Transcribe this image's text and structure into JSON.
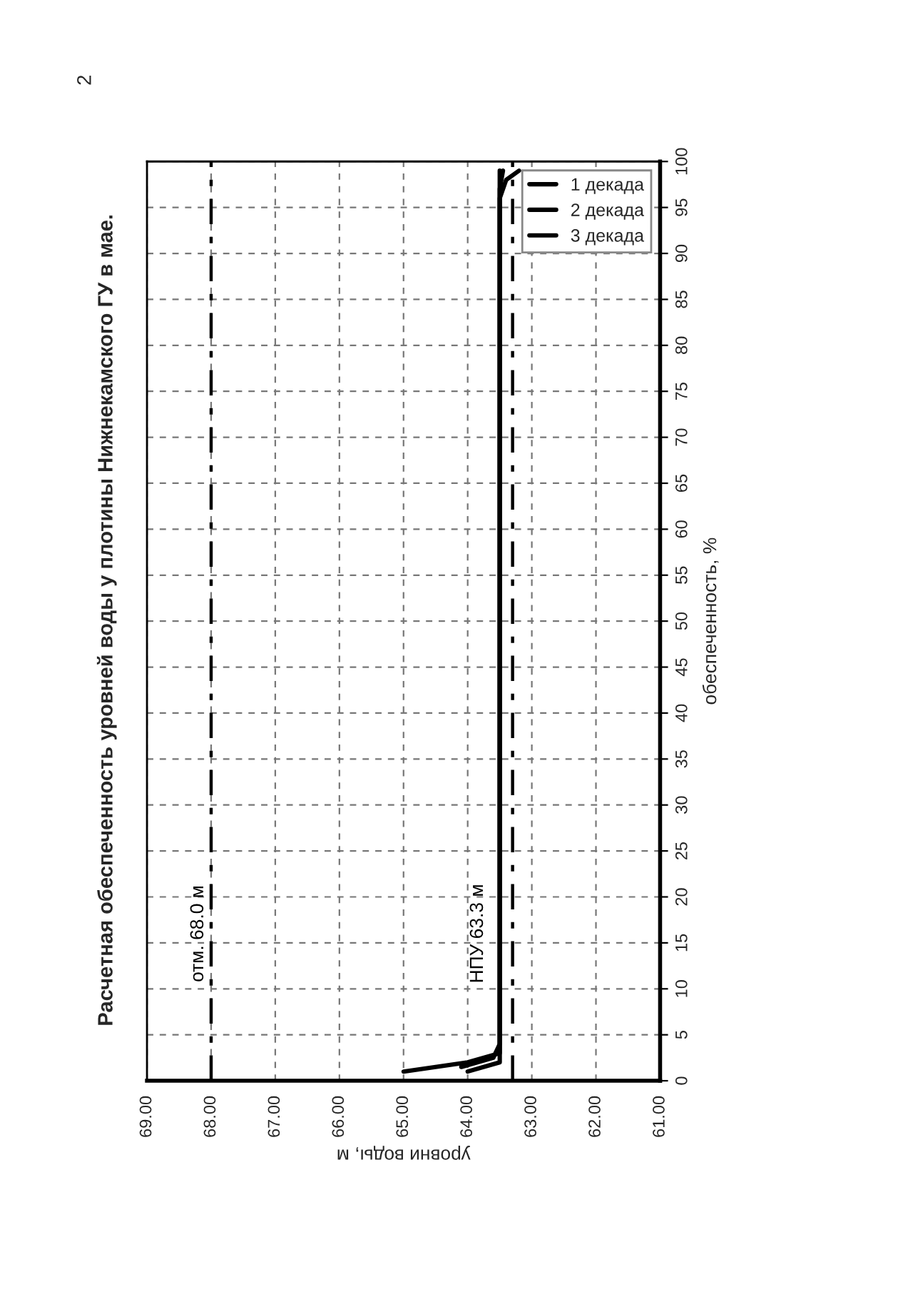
{
  "chart_data": {
    "type": "line",
    "title": "Расчетная обеспеченность уровней воды у плотины Нижнекамского ГУ в мае.",
    "xlabel": "уровни воды, м",
    "ylabel": "обеспеченность, %",
    "xlim": [
      69,
      61
    ],
    "xticks": [
      {
        "value": 69,
        "label": "69.00"
      },
      {
        "value": 68,
        "label": "68.00"
      },
      {
        "value": 67,
        "label": "67.00"
      },
      {
        "value": 66,
        "label": "66.00"
      },
      {
        "value": 65,
        "label": "65.00"
      },
      {
        "value": 64,
        "label": "64.00"
      },
      {
        "value": 63,
        "label": "63.00"
      },
      {
        "value": 62,
        "label": "62.00"
      },
      {
        "value": 61,
        "label": "61.00"
      }
    ],
    "ylim": [
      0,
      100
    ],
    "yticks": [
      0,
      5,
      10,
      15,
      20,
      25,
      30,
      35,
      40,
      45,
      50,
      55,
      60,
      65,
      70,
      75,
      80,
      85,
      90,
      95,
      100
    ],
    "series": [
      {
        "name": "1 декада",
        "color": "#000000",
        "x": [
          65.0,
          64.0,
          63.5,
          63.5,
          63.45
        ],
        "values": [
          1,
          2,
          3,
          97,
          99
        ]
      },
      {
        "name": "2 декада",
        "color": "#000000",
        "x": [
          64.1,
          63.6,
          63.5,
          63.5,
          63.4,
          63.2
        ],
        "values": [
          1.5,
          2.5,
          4,
          96,
          98,
          99
        ]
      },
      {
        "name": "3 декада",
        "color": "#000000",
        "x": [
          64.0,
          63.5,
          63.5,
          63.5
        ],
        "values": [
          1,
          2,
          98,
          99
        ]
      }
    ],
    "ref_lines": [
      {
        "axis": "x",
        "value": 68.0,
        "label": "отм. 68.0 м",
        "color": "#000000",
        "line_style": "dashdot"
      },
      {
        "axis": "x",
        "value": 63.3,
        "label": "НПУ 63.3 м",
        "color": "#000000",
        "line_style": "dashdot"
      }
    ],
    "annotations": [
      "2"
    ],
    "grid": true,
    "legend": "top right",
    "marker": "none",
    "line_style": "solid"
  }
}
